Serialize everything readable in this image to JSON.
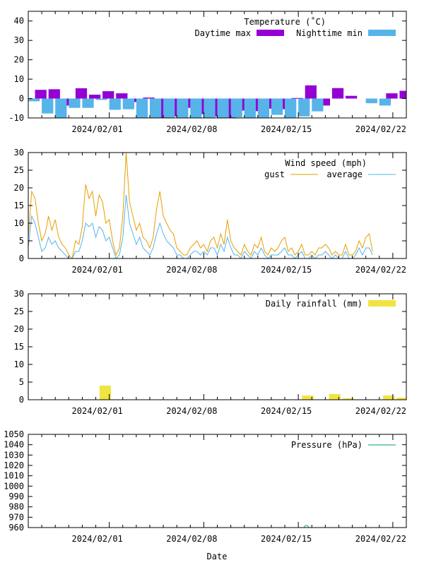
{
  "x_axis": {
    "label": "Date",
    "start": "2024-01-26",
    "end_day_offset": 28,
    "tick_labels": [
      "2024/02/01",
      "2024/02/08",
      "2024/02/15",
      "2024/02/22"
    ],
    "tick_label_day_offsets": [
      6,
      13,
      20,
      27
    ]
  },
  "chart_data": [
    {
      "type": "bar",
      "title": "Temperature (°C)",
      "title_display": "Temperature (˚C)",
      "ylim": [
        -10,
        45
      ],
      "yticks": [
        -10,
        0,
        10,
        20,
        30,
        40
      ],
      "legend_placement": "top-right",
      "series": [
        {
          "name": "Daytime max",
          "color": "#9400d3",
          "day_offsets": [
            0.5,
            1.5,
            2.5,
            3.5,
            4.5,
            5.5,
            6.5,
            7.5,
            8.5,
            9.5,
            10.5,
            11.5,
            12.5,
            13.5,
            14.5,
            15.5,
            16.5,
            17.5,
            18.5,
            19.5,
            20.5,
            21.5,
            22.5,
            23.5,
            24.5,
            25.5,
            26.5,
            27.5
          ],
          "values": [
            4.5,
            4.8,
            -3.6,
            5.3,
            2,
            3.8,
            2.7,
            -1.8,
            0.5,
            -10,
            -9.2,
            -4.8,
            -8,
            -9.3,
            -10,
            -6.2,
            -6.5,
            -5.2,
            -5.5,
            0.3,
            6.8,
            -3.6,
            5.4,
            1.4,
            null,
            null,
            2.7,
            4
          ]
        },
        {
          "name": "Nighttime min",
          "color": "#56b4e9",
          "day_offsets": [
            0,
            1,
            2,
            3,
            4,
            5,
            6,
            7,
            8,
            9,
            10,
            11,
            12,
            13,
            14,
            15,
            16,
            17,
            18,
            19,
            20,
            21,
            22,
            23,
            24,
            25,
            26,
            27
          ],
          "values": [
            -1.4,
            -7.7,
            -10,
            -4.8,
            -4.8,
            -0.7,
            -5.8,
            -5.5,
            -10,
            -10,
            -10,
            -10,
            -10,
            -10,
            -10,
            -9.7,
            -10,
            -10,
            -8.4,
            -10,
            -9.2,
            -6.6,
            null,
            null,
            null,
            -2.4,
            -3.6,
            null
          ]
        }
      ]
    },
    {
      "type": "line",
      "title": "Wind speed (mph)",
      "ylim": [
        0,
        30
      ],
      "yticks": [
        0,
        5,
        10,
        15,
        20,
        25,
        30
      ],
      "legend_placement": "top-right",
      "series": [
        {
          "name": "gust",
          "color": "#e69f00",
          "day_offsets": [
            0,
            0.25,
            0.5,
            0.75,
            1,
            1.25,
            1.5,
            1.75,
            2,
            2.25,
            2.5,
            2.75,
            3,
            3.25,
            3.5,
            3.75,
            4,
            4.25,
            4.5,
            4.75,
            5,
            5.25,
            5.5,
            5.75,
            6,
            6.25,
            6.5,
            6.75,
            7,
            7.25,
            7.5,
            7.75,
            8,
            8.25,
            8.5,
            8.75,
            9,
            9.25,
            9.5,
            9.75,
            10,
            10.25,
            10.5,
            10.75,
            11,
            11.25,
            11.5,
            11.75,
            12,
            12.25,
            12.5,
            12.75,
            13,
            13.25,
            13.5,
            13.75,
            14,
            14.25,
            14.5,
            14.75,
            15,
            15.25,
            15.5,
            15.75,
            16,
            16.25,
            16.5,
            16.75,
            17,
            17.25,
            17.5,
            17.75,
            18,
            18.25,
            18.5,
            18.75,
            19,
            19.25,
            19.5,
            19.75,
            20,
            20.25,
            20.5,
            20.75,
            21,
            21.25,
            21.5,
            21.75,
            22,
            22.25,
            22.5,
            22.75,
            23,
            23.25,
            23.5,
            23.75,
            24,
            24.25,
            24.5,
            24.75,
            25,
            25.25,
            25.5,
            25.75,
            26,
            26.25,
            26.5,
            26.75,
            27,
            27.25,
            27.5,
            27.75
          ],
          "values": [
            6,
            19,
            17,
            10,
            5,
            7,
            12,
            8,
            11,
            6,
            4,
            3,
            1,
            0,
            5,
            4,
            9,
            21,
            17,
            19,
            12,
            18,
            16,
            10,
            11,
            5,
            1,
            3,
            12,
            30,
            16,
            12,
            8,
            10,
            6,
            5,
            3,
            6,
            14,
            19,
            12,
            10,
            8,
            7,
            3,
            2,
            1,
            1,
            3,
            4,
            5,
            3,
            4,
            2,
            5,
            6,
            3,
            7,
            4,
            11,
            5,
            3,
            2,
            1,
            4,
            2,
            1,
            4,
            3,
            6,
            2,
            1,
            3,
            2,
            3,
            5,
            6,
            2,
            3,
            1,
            2,
            4,
            1,
            1,
            2,
            1,
            3,
            3,
            4,
            3,
            1,
            2,
            1,
            1,
            4,
            1,
            1,
            2,
            5,
            3,
            6,
            7,
            2,
            null,
            null,
            null,
            null,
            null,
            null,
            null,
            null,
            null,
            null,
            null,
            null,
            null,
            null,
            null
          ]
        },
        {
          "name": "average",
          "color": "#56b4e9",
          "day_offsets": [
            0,
            0.25,
            0.5,
            0.75,
            1,
            1.25,
            1.5,
            1.75,
            2,
            2.25,
            2.5,
            2.75,
            3,
            3.25,
            3.5,
            3.75,
            4,
            4.25,
            4.5,
            4.75,
            5,
            5.25,
            5.5,
            5.75,
            6,
            6.25,
            6.5,
            6.75,
            7,
            7.25,
            7.5,
            7.75,
            8,
            8.25,
            8.5,
            8.75,
            9,
            9.25,
            9.5,
            9.75,
            10,
            10.25,
            10.5,
            10.75,
            11,
            11.25,
            11.5,
            11.75,
            12,
            12.25,
            12.5,
            12.75,
            13,
            13.25,
            13.5,
            13.75,
            14,
            14.25,
            14.5,
            14.75,
            15,
            15.25,
            15.5,
            15.75,
            16,
            16.25,
            16.5,
            16.75,
            17,
            17.25,
            17.5,
            17.75,
            18,
            18.25,
            18.5,
            18.75,
            19,
            19.25,
            19.5,
            19.75,
            20,
            20.25,
            20.5,
            20.75,
            21,
            21.25,
            21.5,
            21.75,
            22,
            22.25,
            22.5,
            22.75,
            23,
            23.25,
            23.5,
            23.75,
            24,
            24.25,
            24.5,
            24.75,
            25,
            25.25,
            25.5,
            25.75,
            26,
            26.25,
            26.5,
            26.75,
            27,
            27.25,
            27.5,
            27.75
          ],
          "values": [
            3,
            12,
            10,
            6,
            2,
            3,
            6,
            4,
            5,
            3,
            2,
            1,
            0,
            0,
            2,
            2,
            5,
            10,
            9,
            10,
            6,
            9,
            8,
            5,
            6,
            3,
            0,
            1,
            6,
            18,
            10,
            7,
            4,
            6,
            3,
            2,
            1,
            3,
            7,
            10,
            7,
            5,
            4,
            3,
            1,
            1,
            0,
            0,
            1,
            2,
            2,
            1,
            2,
            1,
            3,
            3,
            1,
            4,
            2,
            6,
            3,
            1,
            1,
            0,
            2,
            1,
            0,
            2,
            1,
            3,
            1,
            0,
            1,
            1,
            1,
            2,
            3,
            1,
            1,
            0,
            1,
            2,
            0,
            0,
            1,
            0,
            1,
            1,
            2,
            1,
            0,
            1,
            0,
            0,
            2,
            0,
            0,
            1,
            3,
            1,
            3,
            3,
            1,
            null,
            null,
            null,
            null,
            null,
            null,
            null,
            null,
            null,
            null,
            null,
            null,
            null,
            null,
            null
          ]
        }
      ]
    },
    {
      "type": "bar",
      "title": "Daily rainfall (mm)",
      "ylim": [
        0,
        30
      ],
      "yticks": [
        0,
        5,
        10,
        15,
        20,
        25,
        30
      ],
      "legend_placement": "top-right",
      "series": [
        {
          "name": "Daily rainfall (mm)",
          "color": "#f0e442",
          "day_offsets": [
            5.7,
            20.7,
            22.7,
            23.7,
            26.7,
            27.7
          ],
          "values": [
            4,
            1.2,
            1.6,
            0.4,
            1.2,
            0.6
          ]
        }
      ]
    },
    {
      "type": "line",
      "title": "Pressure (hPa)",
      "ylim": [
        960,
        1050
      ],
      "yticks": [
        960,
        970,
        980,
        990,
        1000,
        1010,
        1020,
        1030,
        1040,
        1050
      ],
      "legend_placement": "top-right",
      "series": [
        {
          "name": "Pressure (hPa)",
          "color": "#009e73",
          "day_offsets": [
            20.6
          ],
          "values": [
            960
          ]
        }
      ]
    }
  ]
}
